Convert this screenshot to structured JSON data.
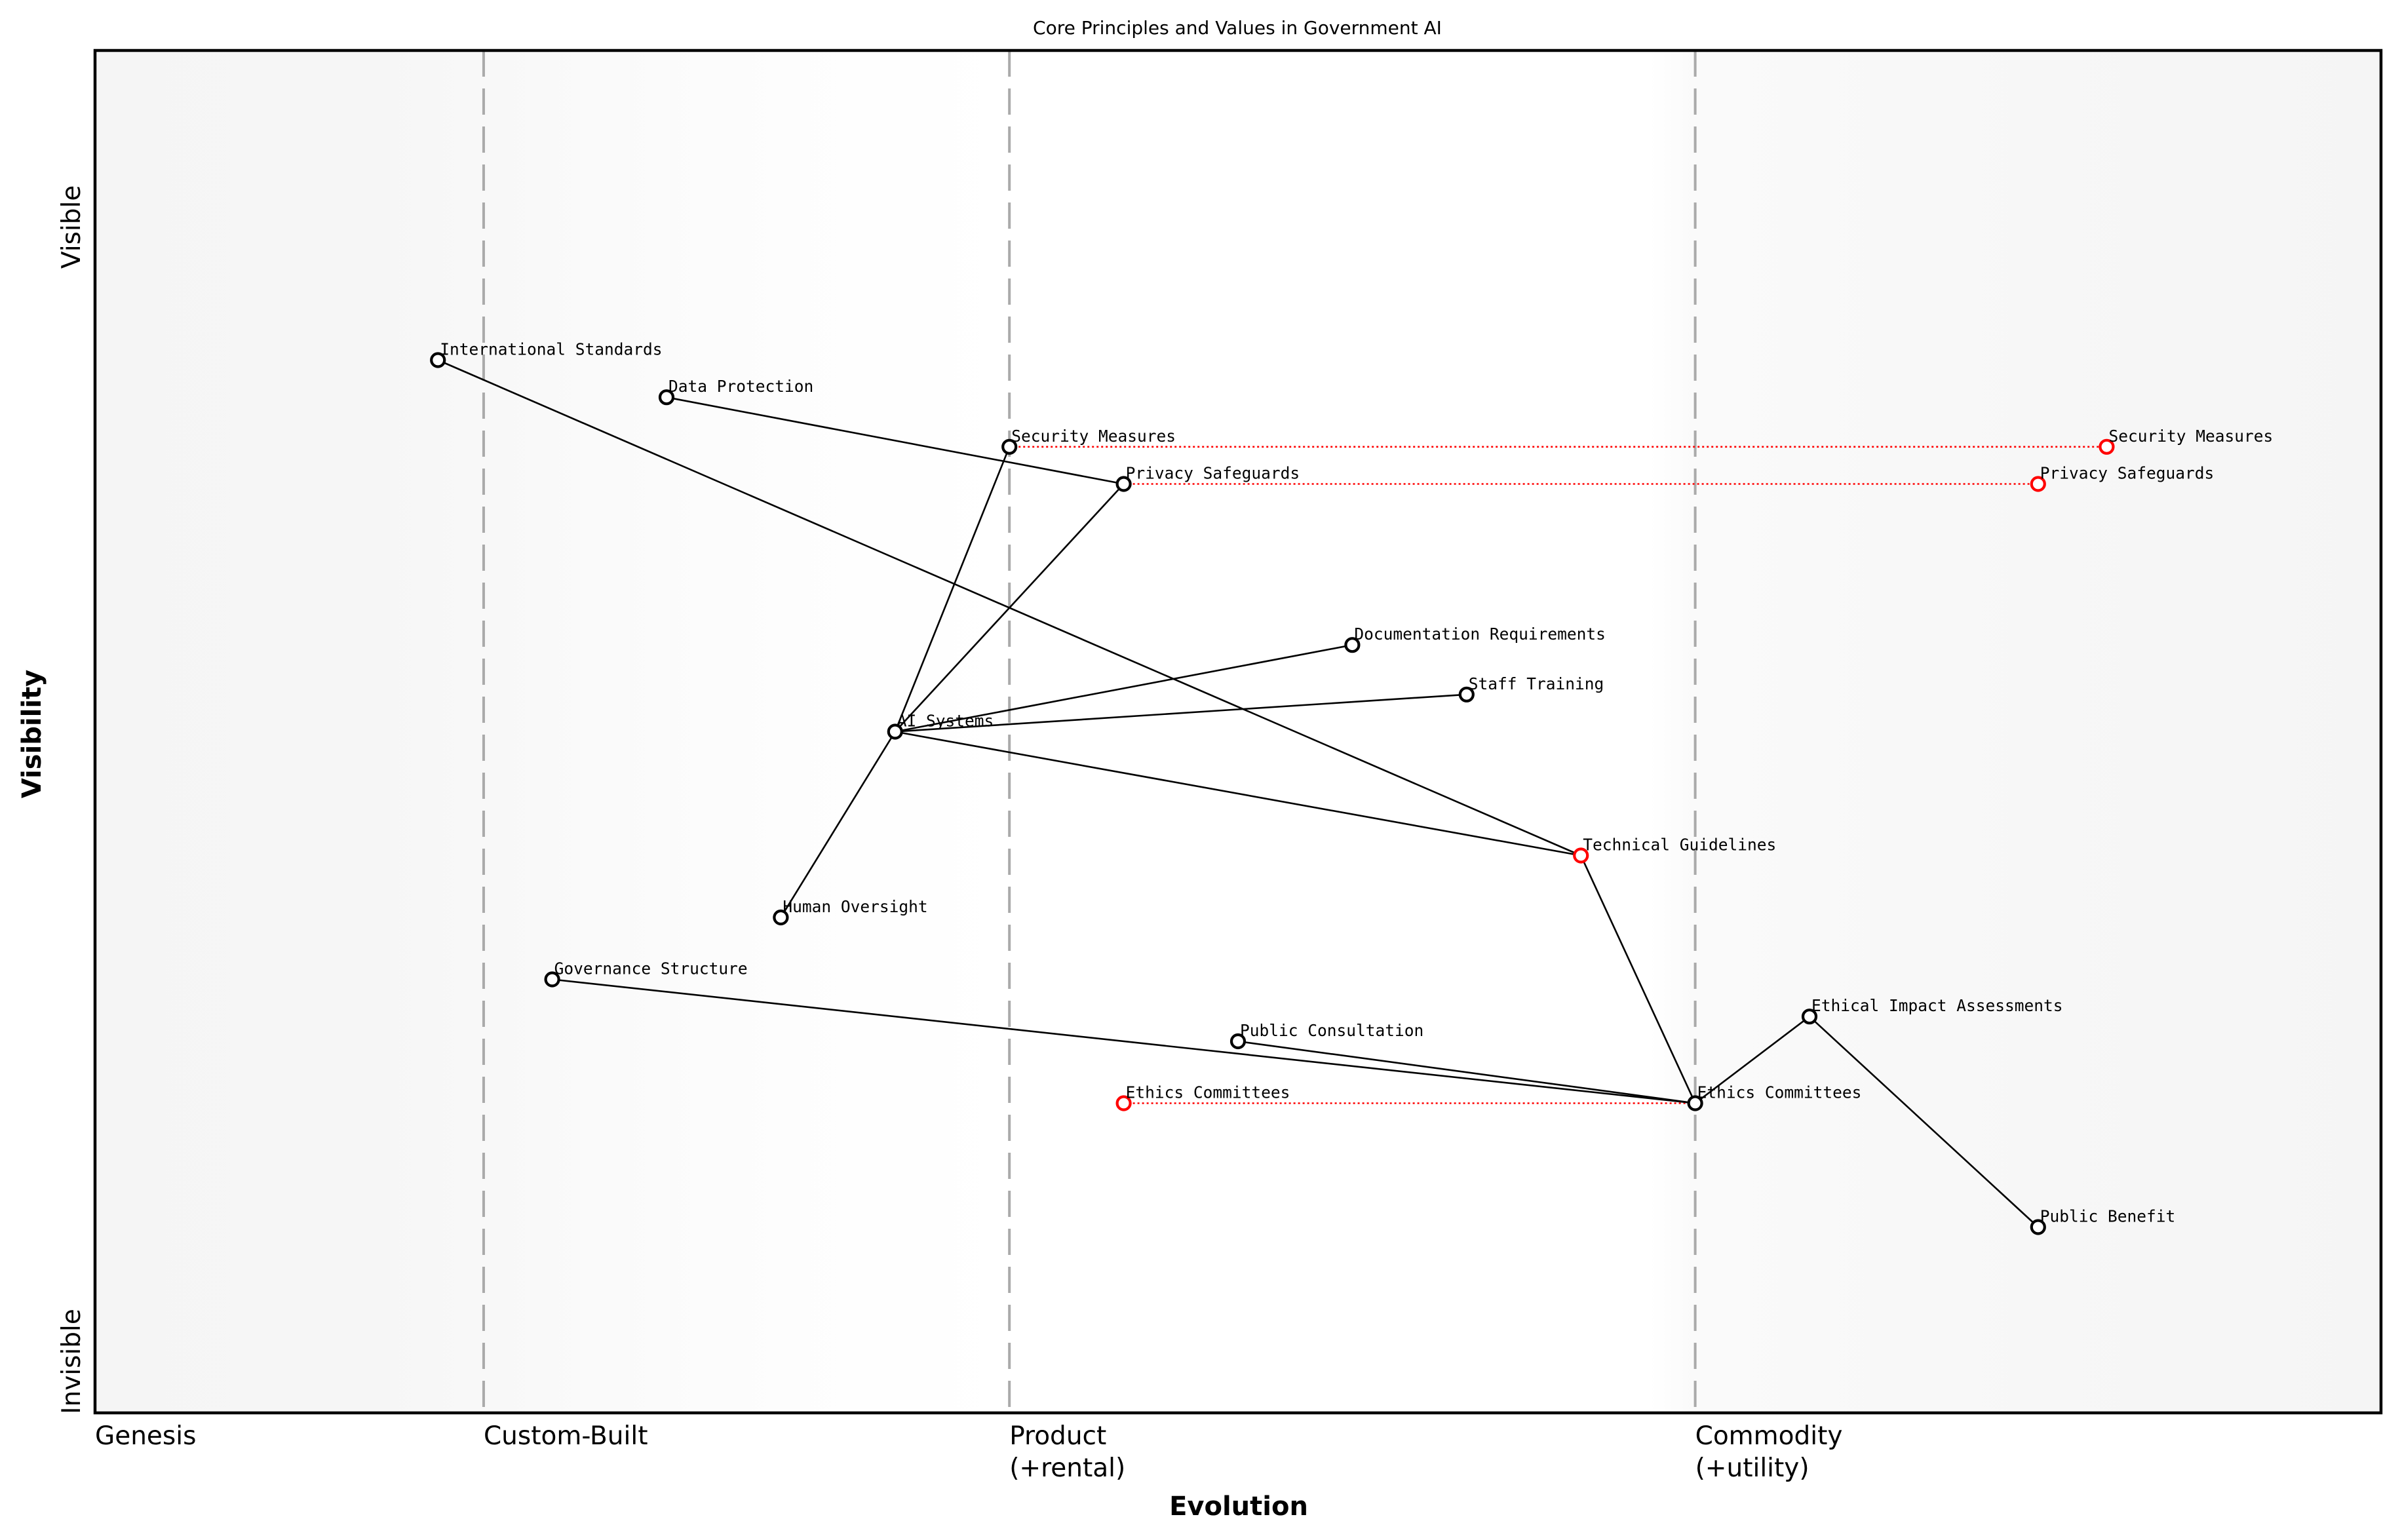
{
  "chart_data": {
    "type": "wardley-map",
    "title": "Core Principles and Values in Government AI",
    "xlabel": "Evolution",
    "ylabel": "Visibility",
    "xlim": [
      0,
      1
    ],
    "ylim": [
      -0.05,
      1.05
    ],
    "y_ticks": {
      "top": "Visible",
      "bottom": "Invisible"
    },
    "x_stages": [
      {
        "label": "Genesis",
        "x": 0.0,
        "line": false
      },
      {
        "label": "Custom-Built",
        "x": 0.17,
        "line": true
      },
      {
        "label": "Product\n(+rental)",
        "x": 0.4,
        "line": true
      },
      {
        "label": "Commodity\n(+utility)",
        "x": 0.7,
        "line": true
      }
    ],
    "nodes": [
      {
        "id": "international-standards",
        "label": "International Standards",
        "evolution": 0.15,
        "visibility": 0.8,
        "color": "#000000"
      },
      {
        "id": "data-protection",
        "label": "Data Protection",
        "evolution": 0.25,
        "visibility": 0.77,
        "color": "#000000"
      },
      {
        "id": "security-measures",
        "label": "Security Measures",
        "evolution": 0.4,
        "visibility": 0.73,
        "color": "#000000"
      },
      {
        "id": "privacy-safeguards",
        "label": "Privacy Safeguards",
        "evolution": 0.45,
        "visibility": 0.7,
        "color": "#000000"
      },
      {
        "id": "documentation-requirements",
        "label": "Documentation Requirements",
        "evolution": 0.55,
        "visibility": 0.57,
        "color": "#000000"
      },
      {
        "id": "staff-training",
        "label": "Staff Training",
        "evolution": 0.6,
        "visibility": 0.53,
        "color": "#000000"
      },
      {
        "id": "ai-systems",
        "label": "AI Systems",
        "evolution": 0.35,
        "visibility": 0.5,
        "color": "#000000"
      },
      {
        "id": "technical-guidelines",
        "label": "Technical Guidelines",
        "evolution": 0.65,
        "visibility": 0.4,
        "color": "#ff0000"
      },
      {
        "id": "human-oversight",
        "label": "Human Oversight",
        "evolution": 0.3,
        "visibility": 0.35,
        "color": "#000000"
      },
      {
        "id": "governance-structure",
        "label": "Governance Structure",
        "evolution": 0.2,
        "visibility": 0.3,
        "color": "#000000"
      },
      {
        "id": "public-consultation",
        "label": "Public Consultation",
        "evolution": 0.5,
        "visibility": 0.25,
        "color": "#000000"
      },
      {
        "id": "ethics-committees",
        "label": "Ethics Committees",
        "evolution": 0.7,
        "visibility": 0.2,
        "color": "#000000"
      },
      {
        "id": "ethical-impact-assessments",
        "label": "Ethical Impact Assessments",
        "evolution": 0.75,
        "visibility": 0.27,
        "color": "#000000"
      },
      {
        "id": "public-benefit",
        "label": "Public Benefit",
        "evolution": 0.85,
        "visibility": 0.1,
        "color": "#000000"
      },
      {
        "id": "security-measures-evolved",
        "label": "Security Measures",
        "evolution": 0.88,
        "visibility": 0.73,
        "color": "#ff0000"
      },
      {
        "id": "privacy-safeguards-evolved",
        "label": "Privacy Safeguards",
        "evolution": 0.85,
        "visibility": 0.7,
        "color": "#ff0000"
      },
      {
        "id": "ethics-committees-evolved",
        "label": "Ethics Committees",
        "evolution": 0.45,
        "visibility": 0.2,
        "color": "#ff0000"
      }
    ],
    "edges": [
      {
        "from": "international-standards",
        "to": "technical-guidelines"
      },
      {
        "from": "data-protection",
        "to": "privacy-safeguards"
      },
      {
        "from": "ai-systems",
        "to": "security-measures"
      },
      {
        "from": "ai-systems",
        "to": "privacy-safeguards"
      },
      {
        "from": "ai-systems",
        "to": "documentation-requirements"
      },
      {
        "from": "ai-systems",
        "to": "staff-training"
      },
      {
        "from": "ai-systems",
        "to": "technical-guidelines"
      },
      {
        "from": "ai-systems",
        "to": "human-oversight"
      },
      {
        "from": "technical-guidelines",
        "to": "ethics-committees"
      },
      {
        "from": "governance-structure",
        "to": "ethics-committees"
      },
      {
        "from": "public-consultation",
        "to": "ethics-committees"
      },
      {
        "from": "ethics-committees",
        "to": "ethical-impact-assessments"
      },
      {
        "from": "ethical-impact-assessments",
        "to": "public-benefit"
      }
    ],
    "evolution_edges": [
      {
        "from": "security-measures",
        "to": "security-measures-evolved",
        "color": "#ff0000",
        "style": "dotted"
      },
      {
        "from": "privacy-safeguards",
        "to": "privacy-safeguards-evolved",
        "color": "#ff0000",
        "style": "dotted"
      },
      {
        "from": "ethics-committees-evolved",
        "to": "ethics-committees",
        "color": "#ff0000",
        "style": "dotted"
      }
    ],
    "colors": {
      "node_default": "#000000",
      "node_highlight": "#ff0000",
      "stage_line": "#aaaaaa",
      "background_edge": "#f5f5f5",
      "background_center": "#ffffff"
    }
  }
}
